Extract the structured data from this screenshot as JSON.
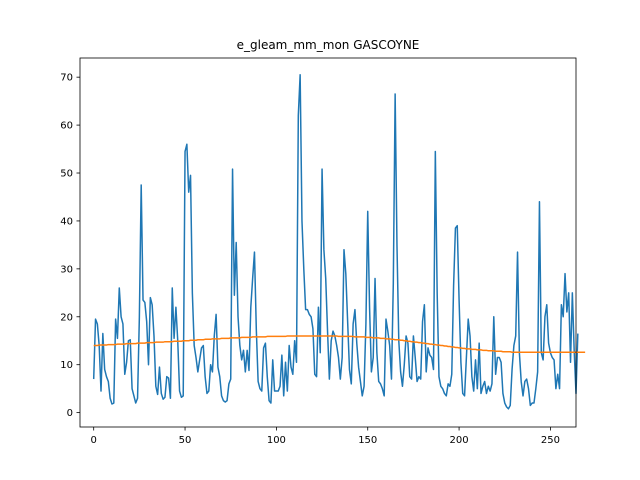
{
  "chart_data": {
    "type": "line",
    "title": "e_gleam_mm_mon GASCOYNE",
    "xlabel": "",
    "ylabel": "",
    "xlim": [
      -7.5,
      264
    ],
    "ylim": [
      -3,
      74
    ],
    "x_ticks": [
      0,
      50,
      100,
      150,
      200,
      250
    ],
    "y_ticks": [
      0,
      10,
      20,
      30,
      40,
      50,
      60,
      70
    ],
    "grid": false,
    "legend": "none",
    "colors": {
      "series_1": "#1f77b4",
      "series_2": "#ff7f0e"
    },
    "series": [
      {
        "values": [
          7.0,
          19.5,
          18.5,
          14.0,
          4.5,
          16.5,
          9.0,
          7.5,
          6.5,
          3.0,
          1.8,
          2.0,
          19.5,
          15.5,
          26.0,
          20.0,
          18.5,
          8.0,
          10.5,
          15.0,
          15.2,
          5.0,
          3.5,
          2.0,
          3.0,
          20.0,
          47.5,
          23.5,
          23.0,
          19.0,
          10.0,
          24.0,
          22.5,
          16.0,
          5.5,
          3.8,
          9.5,
          4.0,
          2.8,
          3.2,
          7.5,
          7.2,
          3.0,
          26.0,
          15.5,
          22.0,
          15.0,
          4.5,
          3.2,
          3.5,
          54.5,
          56.0,
          46.0,
          49.5,
          25.0,
          14.0,
          11.5,
          8.5,
          11.0,
          13.5,
          14.0,
          7.5,
          4.0,
          4.5,
          10.0,
          8.5,
          16.0,
          20.5,
          9.5,
          7.5,
          3.5,
          2.5,
          2.2,
          2.5,
          6.0,
          7.0,
          50.8,
          24.5,
          35.5,
          20.0,
          14.0,
          11.0,
          13.0,
          8.5,
          13.0,
          8.8,
          22.0,
          28.0,
          33.5,
          17.5,
          6.5,
          5.0,
          4.5,
          13.5,
          14.5,
          7.5,
          2.5,
          2.0,
          11.0,
          4.5,
          4.5,
          4.5,
          5.5,
          12.0,
          3.5,
          10.5,
          4.5,
          14.0,
          9.5,
          8.0,
          15.0,
          10.5,
          62.0,
          70.5,
          40.0,
          30.0,
          21.5,
          21.5,
          20.5,
          20.0,
          17.5,
          8.0,
          7.5,
          22.0,
          12.5,
          50.8,
          34.0,
          28.0,
          17.0,
          7.0,
          15.0,
          17.0,
          16.0,
          14.0,
          11.5,
          7.0,
          11.5,
          34.0,
          29.0,
          19.0,
          9.0,
          6.0,
          18.5,
          21.5,
          14.5,
          9.5,
          6.5,
          3.5,
          5.5,
          18.5,
          42.0,
          22.0,
          8.5,
          11.5,
          28.0,
          12.5,
          6.5,
          6.0,
          5.0,
          3.5,
          19.5,
          17.0,
          14.0,
          7.0,
          27.0,
          66.5,
          35.0,
          15.0,
          8.5,
          5.5,
          10.0,
          16.0,
          14.5,
          7.5,
          7.0,
          16.0,
          11.5,
          6.5,
          7.5,
          7.0,
          19.0,
          22.5,
          8.5,
          13.5,
          12.0,
          11.5,
          9.0,
          54.5,
          25.0,
          7.5,
          5.5,
          5.0,
          4.0,
          3.5,
          6.0,
          5.5,
          8.0,
          26.5,
          38.5,
          39.0,
          23.5,
          10.5,
          4.0,
          3.5,
          11.5,
          19.5,
          16.0,
          7.5,
          4.5,
          11.0,
          5.0,
          14.5,
          4.0,
          5.5,
          6.5,
          4.0,
          5.5,
          4.5,
          6.0,
          20.0,
          8.0,
          11.5,
          11.5,
          10.5,
          4.0,
          2.0,
          1.2,
          0.8,
          1.5,
          9.0,
          14.0,
          16.0,
          33.5,
          12.5,
          6.5,
          3.5,
          6.5,
          7.0,
          5.0,
          1.5,
          2.0,
          2.0,
          5.0,
          8.5,
          44.0,
          12.5,
          11.0,
          20.0,
          22.5,
          14.5,
          12.5,
          11.5,
          11.0,
          5.0,
          8.0,
          5.0,
          22.5,
          20.0,
          29.0,
          21.0,
          25.0,
          10.5,
          25.0,
          13.0,
          4.0,
          16.5
        ]
      },
      {
        "values": [
          14.0,
          14.0,
          14.0,
          14.1,
          14.1,
          14.1,
          14.1,
          14.1,
          14.2,
          14.2,
          14.2,
          14.2,
          14.2,
          14.3,
          14.3,
          14.3,
          14.3,
          14.3,
          14.4,
          14.4,
          14.4,
          14.4,
          14.4,
          14.4,
          14.5,
          14.5,
          14.5,
          14.5,
          14.5,
          14.6,
          14.6,
          14.6,
          14.6,
          14.6,
          14.7,
          14.7,
          14.7,
          14.7,
          14.7,
          14.8,
          14.8,
          14.8,
          14.8,
          14.8,
          14.9,
          14.9,
          14.9,
          14.9,
          14.9,
          15.0,
          15.0,
          15.0,
          15.0,
          15.1,
          15.1,
          15.1,
          15.1,
          15.2,
          15.2,
          15.2,
          15.2,
          15.3,
          15.3,
          15.3,
          15.3,
          15.4,
          15.4,
          15.4,
          15.4,
          15.4,
          15.5,
          15.5,
          15.5,
          15.5,
          15.5,
          15.6,
          15.6,
          15.6,
          15.6,
          15.6,
          15.6,
          15.7,
          15.7,
          15.7,
          15.7,
          15.7,
          15.7,
          15.8,
          15.8,
          15.8,
          15.8,
          15.8,
          15.8,
          15.8,
          15.8,
          15.9,
          15.9,
          15.9,
          15.9,
          15.9,
          15.9,
          15.9,
          15.9,
          15.9,
          15.9,
          15.9,
          16.0,
          16.0,
          16.0,
          16.0,
          16.0,
          16.0,
          16.0,
          16.0,
          16.0,
          16.0,
          16.0,
          16.0,
          16.0,
          16.0,
          16.0,
          16.0,
          16.0,
          16.0,
          16.0,
          16.0,
          16.0,
          16.0,
          16.0,
          16.0,
          16.0,
          16.0,
          16.0,
          16.0,
          15.9,
          15.9,
          15.9,
          15.9,
          15.9,
          15.9,
          15.9,
          15.9,
          15.9,
          15.8,
          15.8,
          15.8,
          15.8,
          15.8,
          15.8,
          15.7,
          15.7,
          15.7,
          15.7,
          15.6,
          15.6,
          15.6,
          15.6,
          15.5,
          15.5,
          15.5,
          15.4,
          15.4,
          15.4,
          15.3,
          15.3,
          15.2,
          15.2,
          15.2,
          15.1,
          15.1,
          15.0,
          15.0,
          14.9,
          14.9,
          14.8,
          14.8,
          14.7,
          14.7,
          14.6,
          14.6,
          14.5,
          14.5,
          14.4,
          14.4,
          14.3,
          14.3,
          14.2,
          14.2,
          14.1,
          14.1,
          14.0,
          14.0,
          13.9,
          13.9,
          13.8,
          13.8,
          13.7,
          13.7,
          13.6,
          13.6,
          13.5,
          13.5,
          13.4,
          13.4,
          13.3,
          13.3,
          13.3,
          13.2,
          13.2,
          13.2,
          13.1,
          13.1,
          13.1,
          13.0,
          13.0,
          13.0,
          12.9,
          12.9,
          12.9,
          12.9,
          12.8,
          12.8,
          12.8,
          12.8,
          12.7,
          12.7,
          12.7,
          12.7,
          12.7,
          12.6,
          12.6,
          12.6,
          12.6,
          12.6,
          12.6,
          12.6,
          12.6,
          12.6,
          12.6,
          12.6,
          12.6,
          12.6,
          12.6,
          12.6,
          12.6,
          12.6,
          12.6,
          12.6,
          12.6,
          12.6,
          12.6,
          12.6,
          12.6,
          12.6,
          12.6,
          12.6,
          12.6,
          12.6,
          12.6,
          12.6,
          12.6,
          12.6,
          12.6,
          12.6,
          12.6,
          12.6,
          12.6,
          12.6,
          12.6,
          12.6
        ]
      }
    ]
  }
}
